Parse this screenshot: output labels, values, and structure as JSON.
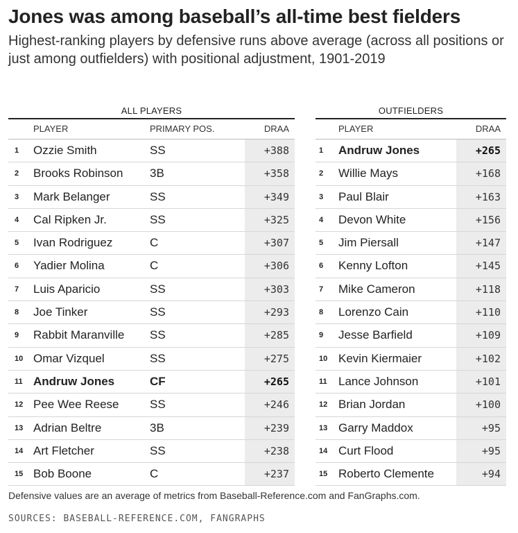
{
  "title": "Jones was among baseball’s all-time best fielders",
  "subtitle": "Highest-ranking players by defensive runs above average (across all positions or just among outfielders) with positional adjustment, 1901-2019",
  "note": "Defensive values are an average of metrics from Baseball-Reference.com and FanGraphs.com.",
  "source": "SOURCES: BASEBALL-REFERENCE.COM, FANGRAPHS",
  "chart_data": [
    {
      "type": "table",
      "title": "ALL PLAYERS",
      "columns": [
        "PLAYER",
        "PRIMARY POS.",
        "DRAA"
      ],
      "rows": [
        {
          "rank": "1",
          "player": "Ozzie Smith",
          "pos": "SS",
          "draa": "+388",
          "highlight": false
        },
        {
          "rank": "2",
          "player": "Brooks Robinson",
          "pos": "3B",
          "draa": "+358",
          "highlight": false
        },
        {
          "rank": "3",
          "player": "Mark Belanger",
          "pos": "SS",
          "draa": "+349",
          "highlight": false
        },
        {
          "rank": "4",
          "player": "Cal Ripken Jr.",
          "pos": "SS",
          "draa": "+325",
          "highlight": false
        },
        {
          "rank": "5",
          "player": "Ivan Rodriguez",
          "pos": "C",
          "draa": "+307",
          "highlight": false
        },
        {
          "rank": "6",
          "player": "Yadier Molina",
          "pos": "C",
          "draa": "+306",
          "highlight": false
        },
        {
          "rank": "7",
          "player": "Luis Aparicio",
          "pos": "SS",
          "draa": "+303",
          "highlight": false
        },
        {
          "rank": "8",
          "player": "Joe Tinker",
          "pos": "SS",
          "draa": "+293",
          "highlight": false
        },
        {
          "rank": "9",
          "player": "Rabbit Maranville",
          "pos": "SS",
          "draa": "+285",
          "highlight": false
        },
        {
          "rank": "10",
          "player": "Omar Vizquel",
          "pos": "SS",
          "draa": "+275",
          "highlight": false
        },
        {
          "rank": "11",
          "player": "Andruw Jones",
          "pos": "CF",
          "draa": "+265",
          "highlight": true
        },
        {
          "rank": "12",
          "player": "Pee Wee Reese",
          "pos": "SS",
          "draa": "+246",
          "highlight": false
        },
        {
          "rank": "13",
          "player": "Adrian Beltre",
          "pos": "3B",
          "draa": "+239",
          "highlight": false
        },
        {
          "rank": "14",
          "player": "Art Fletcher",
          "pos": "SS",
          "draa": "+238",
          "highlight": false
        },
        {
          "rank": "15",
          "player": "Bob Boone",
          "pos": "C",
          "draa": "+237",
          "highlight": false
        }
      ]
    },
    {
      "type": "table",
      "title": "OUTFIELDERS",
      "columns": [
        "PLAYER",
        "DRAA"
      ],
      "rows": [
        {
          "rank": "1",
          "player": "Andruw Jones",
          "draa": "+265",
          "highlight": true
        },
        {
          "rank": "2",
          "player": "Willie Mays",
          "draa": "+168",
          "highlight": false
        },
        {
          "rank": "3",
          "player": "Paul Blair",
          "draa": "+163",
          "highlight": false
        },
        {
          "rank": "4",
          "player": "Devon White",
          "draa": "+156",
          "highlight": false
        },
        {
          "rank": "5",
          "player": "Jim Piersall",
          "draa": "+147",
          "highlight": false
        },
        {
          "rank": "6",
          "player": "Kenny Lofton",
          "draa": "+145",
          "highlight": false
        },
        {
          "rank": "7",
          "player": "Mike Cameron",
          "draa": "+118",
          "highlight": false
        },
        {
          "rank": "8",
          "player": "Lorenzo Cain",
          "draa": "+110",
          "highlight": false
        },
        {
          "rank": "9",
          "player": "Jesse Barfield",
          "draa": "+109",
          "highlight": false
        },
        {
          "rank": "10",
          "player": "Kevin Kiermaier",
          "draa": "+102",
          "highlight": false
        },
        {
          "rank": "11",
          "player": "Lance Johnson",
          "draa": "+101",
          "highlight": false
        },
        {
          "rank": "12",
          "player": "Brian Jordan",
          "draa": "+100",
          "highlight": false
        },
        {
          "rank": "13",
          "player": "Garry Maddox",
          "draa": "+95",
          "highlight": false
        },
        {
          "rank": "14",
          "player": "Curt Flood",
          "draa": "+95",
          "highlight": false
        },
        {
          "rank": "15",
          "player": "Roberto Clemente",
          "draa": "+94",
          "highlight": false
        }
      ]
    }
  ]
}
